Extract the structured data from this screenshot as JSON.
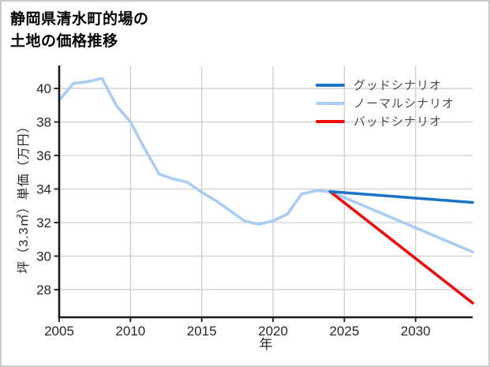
{
  "title": {
    "line1": "静岡県清水町的場の",
    "line2": "土地の価格推移"
  },
  "chart_data": {
    "type": "line",
    "title": "静岡県清水町的場の土地の価格推移",
    "xlabel": "年",
    "ylabel": "坪（3.3㎡）単価（万円）",
    "x_ticks": [
      2005,
      2010,
      2015,
      2020,
      2025,
      2030
    ],
    "y_ticks": [
      28,
      30,
      32,
      34,
      36,
      38,
      40
    ],
    "xlim": [
      2005,
      2034
    ],
    "ylim": [
      26.35,
      41.32
    ],
    "grid": true,
    "grid_color": "#cdcdcd",
    "axis_color": "#1a1a1a",
    "legend_position": "top-right",
    "series": [
      {
        "name": "グッドシナリオ",
        "color": "#1c74c6",
        "x": [
          2024,
          2034
        ],
        "y": [
          33.85,
          33.2
        ]
      },
      {
        "name": "ノーマルシナリオ",
        "color": "#a9cdf2",
        "x": [
          2005,
          2006,
          2007,
          2008,
          2009,
          2010,
          2011,
          2012,
          2013,
          2014,
          2015,
          2016,
          2017,
          2018,
          2019,
          2020,
          2021,
          2022,
          2023,
          2024,
          2034
        ],
        "y": [
          39.3,
          40.3,
          40.4,
          40.6,
          39.0,
          38.0,
          36.4,
          34.9,
          34.6,
          34.4,
          33.8,
          33.3,
          32.7,
          32.1,
          31.9,
          32.1,
          32.5,
          33.7,
          33.9,
          33.85,
          30.25
        ]
      },
      {
        "name": "バッドシナリオ",
        "color": "#f20d0d",
        "x": [
          2024,
          2034
        ],
        "y": [
          33.85,
          27.2
        ]
      }
    ]
  }
}
